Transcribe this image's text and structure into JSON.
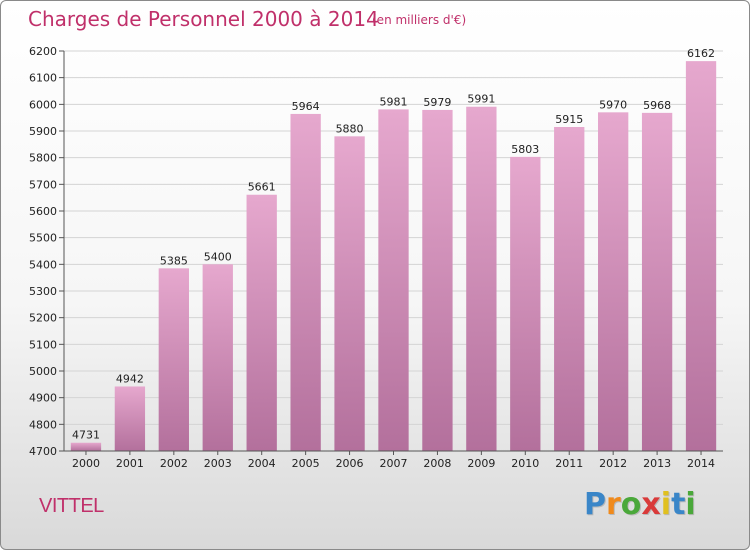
{
  "title": "Charges de Personnel 2000 à 2014",
  "subtitle": "(en milliers d'€)",
  "location": "VITTEL",
  "brand": {
    "letters": [
      "P",
      "r",
      "o",
      "x",
      "i",
      "t",
      "i"
    ],
    "colors": [
      "#3a86c8",
      "#f08a1c",
      "#4aa83a",
      "#d93a3a",
      "#e0c020",
      "#3a86c8",
      "#4aa83a"
    ]
  },
  "colors": {
    "bar_top": "#e6a8ce",
    "bar_bottom": "#b3709c",
    "text_accent": "#c0306a",
    "grid": "#d4d4d4",
    "axis_text": "#222222"
  },
  "chart_data": {
    "type": "bar",
    "categories": [
      "2000",
      "2001",
      "2002",
      "2003",
      "2004",
      "2005",
      "2006",
      "2007",
      "2008",
      "2009",
      "2010",
      "2011",
      "2012",
      "2013",
      "2014"
    ],
    "values": [
      4731,
      4942,
      5385,
      5400,
      5661,
      5964,
      5880,
      5981,
      5979,
      5991,
      5803,
      5915,
      5970,
      5968,
      6162
    ],
    "ylim": [
      4700,
      6200
    ],
    "yticks": [
      4700,
      4800,
      4900,
      5000,
      5100,
      5200,
      5300,
      5400,
      5500,
      5600,
      5700,
      5800,
      5900,
      6000,
      6100,
      6200
    ],
    "grid": true,
    "data_labels": true,
    "xlabel": "",
    "ylabel": ""
  }
}
